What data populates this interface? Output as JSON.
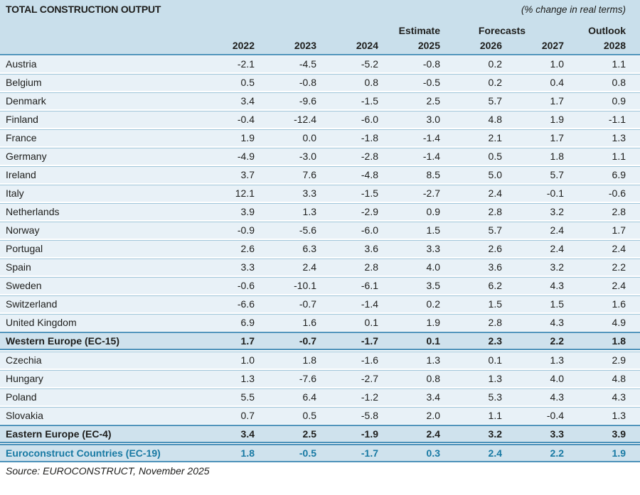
{
  "colors": {
    "header_bg": "#c9dfeb",
    "row_bg": "#e8f1f7",
    "summary_row_bg": "#cfe2ed",
    "strong_border": "#4d92ba",
    "light_border": "#9fc5d9",
    "total_text": "#1779a3",
    "text": "#1d1d1b"
  },
  "chart_data": {
    "type": "table",
    "title": "TOTAL CONSTRUCTION OUTPUT",
    "unit_note": "(% change in real terms)",
    "group_headers": {
      "estimate": "Estimate",
      "forecasts": "Forecasts",
      "outlook": "Outlook"
    },
    "years": [
      "2022",
      "2023",
      "2024",
      "2025",
      "2026",
      "2027",
      "2028"
    ],
    "rows": [
      {
        "label": "Austria",
        "style": "normal",
        "values": [
          "-2.1",
          "-4.5",
          "-5.2",
          "-0.8",
          "0.2",
          "1.0",
          "1.1"
        ]
      },
      {
        "label": "Belgium",
        "style": "normal",
        "values": [
          "0.5",
          "-0.8",
          "0.8",
          "-0.5",
          "0.2",
          "0.4",
          "0.8"
        ]
      },
      {
        "label": "Denmark",
        "style": "normal",
        "values": [
          "3.4",
          "-9.6",
          "-1.5",
          "2.5",
          "5.7",
          "1.7",
          "0.9"
        ]
      },
      {
        "label": "Finland",
        "style": "normal",
        "values": [
          "-0.4",
          "-12.4",
          "-6.0",
          "3.0",
          "4.8",
          "1.9",
          "-1.1"
        ]
      },
      {
        "label": "France",
        "style": "normal",
        "values": [
          "1.9",
          "0.0",
          "-1.8",
          "-1.4",
          "2.1",
          "1.7",
          "1.3"
        ]
      },
      {
        "label": "Germany",
        "style": "normal",
        "values": [
          "-4.9",
          "-3.0",
          "-2.8",
          "-1.4",
          "0.5",
          "1.8",
          "1.1"
        ]
      },
      {
        "label": "Ireland",
        "style": "normal",
        "values": [
          "3.7",
          "7.6",
          "-4.8",
          "8.5",
          "5.0",
          "5.7",
          "6.9"
        ]
      },
      {
        "label": "Italy",
        "style": "normal",
        "values": [
          "12.1",
          "3.3",
          "-1.5",
          "-2.7",
          "2.4",
          "-0.1",
          "-0.6"
        ]
      },
      {
        "label": "Netherlands",
        "style": "normal",
        "values": [
          "3.9",
          "1.3",
          "-2.9",
          "0.9",
          "2.8",
          "3.2",
          "2.8"
        ]
      },
      {
        "label": "Norway",
        "style": "normal",
        "values": [
          "-0.9",
          "-5.6",
          "-6.0",
          "1.5",
          "5.7",
          "2.4",
          "1.7"
        ]
      },
      {
        "label": "Portugal",
        "style": "normal",
        "values": [
          "2.6",
          "6.3",
          "3.6",
          "3.3",
          "2.6",
          "2.4",
          "2.4"
        ]
      },
      {
        "label": "Spain",
        "style": "normal",
        "values": [
          "3.3",
          "2.4",
          "2.8",
          "4.0",
          "3.6",
          "3.2",
          "2.2"
        ]
      },
      {
        "label": "Sweden",
        "style": "normal",
        "values": [
          "-0.6",
          "-10.1",
          "-6.1",
          "3.5",
          "6.2",
          "4.3",
          "2.4"
        ]
      },
      {
        "label": "Switzerland",
        "style": "normal",
        "values": [
          "-6.6",
          "-0.7",
          "-1.4",
          "0.2",
          "1.5",
          "1.5",
          "1.6"
        ]
      },
      {
        "label": "United Kingdom",
        "style": "normal",
        "values": [
          "6.9",
          "1.6",
          "0.1",
          "1.9",
          "2.8",
          "4.3",
          "4.9"
        ]
      },
      {
        "label": "Western Europe (EC-15)",
        "style": "subtotal",
        "values": [
          "1.7",
          "-0.7",
          "-1.7",
          "0.1",
          "2.3",
          "2.2",
          "1.8"
        ]
      },
      {
        "label": "Czechia",
        "style": "normal",
        "values": [
          "1.0",
          "1.8",
          "-1.6",
          "1.3",
          "0.1",
          "1.3",
          "2.9"
        ]
      },
      {
        "label": "Hungary",
        "style": "normal",
        "values": [
          "1.3",
          "-7.6",
          "-2.7",
          "0.8",
          "1.3",
          "4.0",
          "4.8"
        ]
      },
      {
        "label": "Poland",
        "style": "normal",
        "values": [
          "5.5",
          "6.4",
          "-1.2",
          "3.4",
          "5.3",
          "4.3",
          "4.3"
        ]
      },
      {
        "label": "Slovakia",
        "style": "normal",
        "values": [
          "0.7",
          "0.5",
          "-5.8",
          "2.0",
          "1.1",
          "-0.4",
          "1.3"
        ]
      },
      {
        "label": "Eastern Europe (EC-4)",
        "style": "subtotal",
        "values": [
          "3.4",
          "2.5",
          "-1.9",
          "2.4",
          "3.2",
          "3.3",
          "3.9"
        ]
      },
      {
        "label": "Euroconstruct Countries (EC-19)",
        "style": "total",
        "values": [
          "1.8",
          "-0.5",
          "-1.7",
          "0.3",
          "2.4",
          "2.2",
          "1.9"
        ]
      }
    ],
    "source": "Source: EUROCONSTRUCT, November 2025"
  }
}
